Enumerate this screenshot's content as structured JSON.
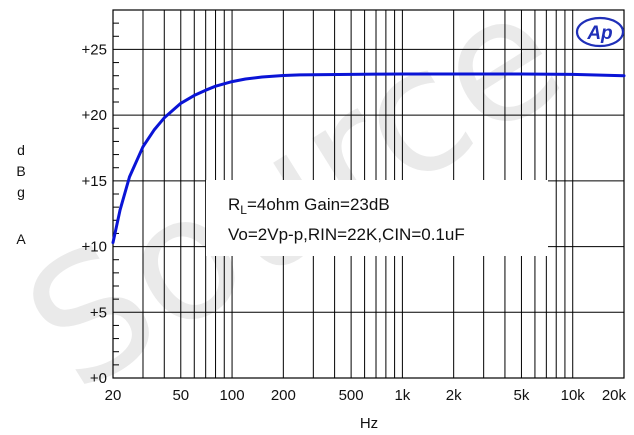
{
  "chart_data": {
    "type": "line",
    "title": "",
    "xlabel": "Hz",
    "ylabel_letters": [
      "d",
      "B",
      "g",
      "",
      "A"
    ],
    "x_scale": "log",
    "xlim": [
      20,
      20000
    ],
    "ylim": [
      0,
      28
    ],
    "grid": true,
    "x_ticks": [
      {
        "value": 20,
        "label": "20"
      },
      {
        "value": 50,
        "label": "50"
      },
      {
        "value": 100,
        "label": "100"
      },
      {
        "value": 200,
        "label": "200"
      },
      {
        "value": 500,
        "label": "500"
      },
      {
        "value": 1000,
        "label": "1k"
      },
      {
        "value": 2000,
        "label": "2k"
      },
      {
        "value": 5000,
        "label": "5k"
      },
      {
        "value": 10000,
        "label": "10k"
      },
      {
        "value": 20000,
        "label": "20k"
      }
    ],
    "y_ticks": [
      {
        "value": 0,
        "label": "+0"
      },
      {
        "value": 5,
        "label": "+5"
      },
      {
        "value": 10,
        "label": "+10"
      },
      {
        "value": 15,
        "label": "+15"
      },
      {
        "value": 20,
        "label": "+20"
      },
      {
        "value": 25,
        "label": "+25"
      }
    ],
    "series": [
      {
        "color": "#0a14d6",
        "x": [
          20,
          22,
          25,
          30,
          35,
          40,
          50,
          60,
          70,
          80,
          100,
          120,
          150,
          200,
          250,
          300,
          500,
          700,
          1000,
          2000,
          5000,
          10000,
          20000
        ],
        "y": [
          10.3,
          12.8,
          15.3,
          17.6,
          18.9,
          19.8,
          20.9,
          21.5,
          21.9,
          22.2,
          22.55,
          22.75,
          22.9,
          23.02,
          23.06,
          23.08,
          23.1,
          23.12,
          23.13,
          23.13,
          23.13,
          23.1,
          23.0
        ]
      }
    ],
    "annotation": {
      "rl_main": "R",
      "rl_sub": "L",
      "line1_rest": "=4ohm Gain=23dB",
      "line2": "Vo=2Vp-p,RIN=22K,CIN=0.1uF"
    }
  },
  "logo": {
    "text": "Ap",
    "color": "#1f2fb8"
  },
  "watermark": {
    "text": "Source",
    "color": "#d9d9d9"
  }
}
